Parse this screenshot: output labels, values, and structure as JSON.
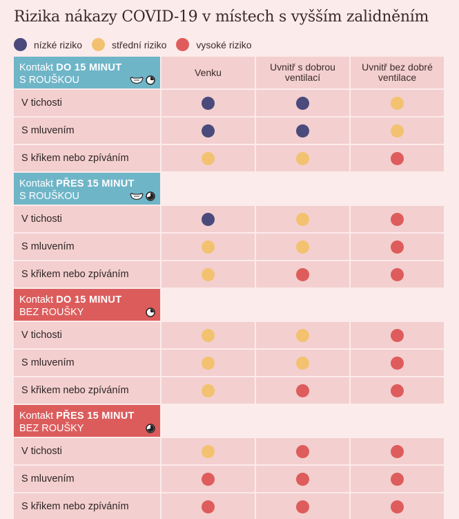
{
  "title": "Rizika nákazy COVID-19 v místech s vyšším zalidněním",
  "legend": [
    {
      "label": "nízké riziko",
      "color": "#4a4a7c",
      "level": "low"
    },
    {
      "label": "střední riziko",
      "color": "#f2c270",
      "level": "medium"
    },
    {
      "label": "vysoké riziko",
      "color": "#de5c5c",
      "level": "high"
    }
  ],
  "columns": [
    "Venku",
    "Uvnitř s dobrou ventilací",
    "Uvnitř bez dobré ventilace"
  ],
  "chart_data": {
    "type": "table",
    "columns": [
      "Venku",
      "Uvnitř s dobrou ventilací",
      "Uvnitř bez dobré ventilace"
    ],
    "groups": [
      {
        "label_prefix": "Kontakt ",
        "label_bold": "DO 15 MINUT",
        "label_suffix": "S ROUŠKOU",
        "color": "#6fb5c8",
        "icons": [
          "mask-icon",
          "clock-quarter-icon"
        ],
        "rows": [
          {
            "label": "V tichosti",
            "values": [
              "low",
              "low",
              "medium"
            ]
          },
          {
            "label": "S mluvením",
            "values": [
              "low",
              "low",
              "medium"
            ]
          },
          {
            "label": "S křikem nebo zpíváním",
            "values": [
              "medium",
              "medium",
              "high"
            ]
          }
        ]
      },
      {
        "label_prefix": "Kontakt ",
        "label_bold": "PŘES 15 MINUT",
        "label_suffix": "S ROUŠKOU",
        "color": "#6fb5c8",
        "icons": [
          "mask-icon",
          "clock-full-icon"
        ],
        "rows": [
          {
            "label": "V tichosti",
            "values": [
              "low",
              "medium",
              "high"
            ]
          },
          {
            "label": "S mluvením",
            "values": [
              "medium",
              "medium",
              "high"
            ]
          },
          {
            "label": "S křikem nebo zpíváním",
            "values": [
              "medium",
              "high",
              "high"
            ]
          }
        ]
      },
      {
        "label_prefix": "Kontakt ",
        "label_bold": "DO 15 MINUT",
        "label_suffix": "BEZ ROUŠKY",
        "color": "#dc5c5c",
        "icons": [
          "clock-quarter-icon"
        ],
        "rows": [
          {
            "label": "V tichosti",
            "values": [
              "medium",
              "medium",
              "high"
            ]
          },
          {
            "label": "S mluvením",
            "values": [
              "medium",
              "medium",
              "high"
            ]
          },
          {
            "label": "S křikem nebo zpíváním",
            "values": [
              "medium",
              "high",
              "high"
            ]
          }
        ]
      },
      {
        "label_prefix": "Kontakt ",
        "label_bold": "PŘES 15 MINUT",
        "label_suffix": "BEZ ROUŠKY",
        "color": "#dc5c5c",
        "icons": [
          "clock-full-icon"
        ],
        "rows": [
          {
            "label": "V tichosti",
            "values": [
              "medium",
              "high",
              "high"
            ]
          },
          {
            "label": "S mluvením",
            "values": [
              "high",
              "high",
              "high"
            ]
          },
          {
            "label": "S křikem nebo zpíváním",
            "values": [
              "high",
              "high",
              "high"
            ]
          }
        ]
      }
    ]
  }
}
